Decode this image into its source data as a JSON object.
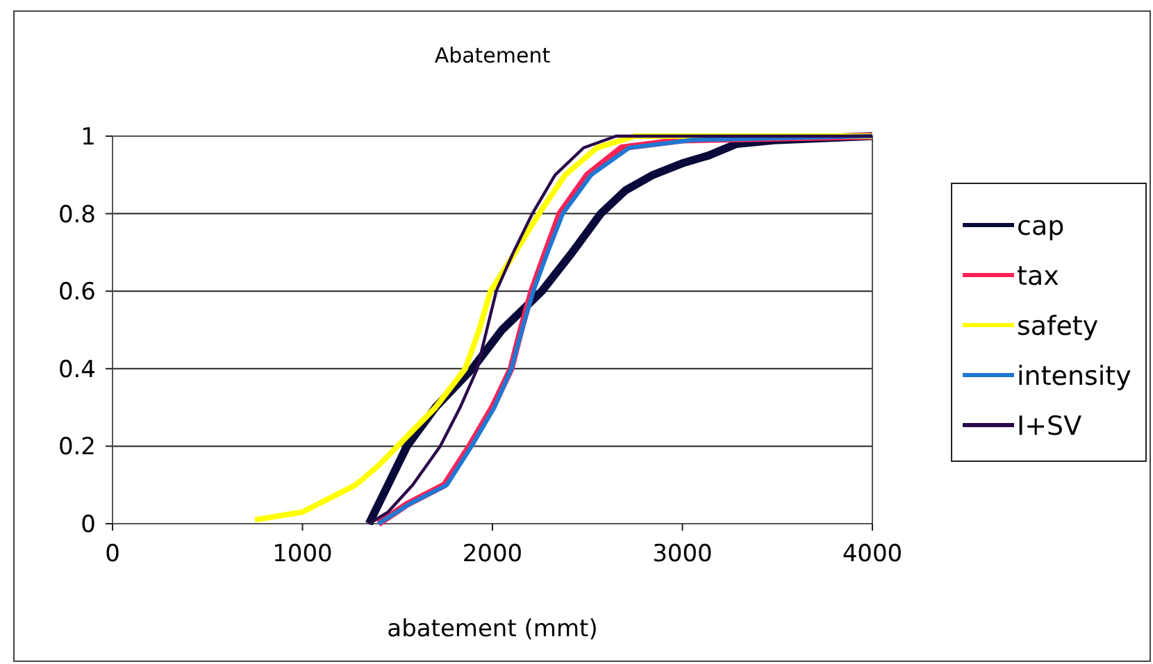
{
  "chart_data": {
    "type": "line",
    "title": "Abatement",
    "xlabel": "abatement (mmt)",
    "xlim": [
      0,
      4000
    ],
    "xticks": [
      0,
      1000,
      2000,
      3000,
      4000
    ],
    "ylim": [
      0,
      1
    ],
    "yticks": [
      0,
      0.2,
      0.4,
      0.6,
      0.8,
      1
    ],
    "grid": "y",
    "legend": "right",
    "marker": "none",
    "line_style": "solid",
    "series": [
      {
        "name": "cap",
        "color": "#0a0a3a",
        "x": [
          1350,
          1450,
          1550,
          1700,
          1894,
          2050,
          2260,
          2420,
          2570,
          2700,
          2845,
          3000,
          3138,
          3285,
          3500,
          4000
        ],
        "values": [
          0,
          0.1,
          0.2,
          0.3,
          0.4,
          0.5,
          0.6,
          0.7,
          0.8,
          0.86,
          0.9,
          0.93,
          0.95,
          0.98,
          0.99,
          1
        ]
      },
      {
        "name": "tax",
        "color": "#ff2255",
        "x": [
          1400,
          1550,
          1748,
          1880,
          2000,
          2098,
          2150,
          2207,
          2280,
          2355,
          2500,
          2680,
          3000,
          4000
        ],
        "values": [
          0,
          0.05,
          0.1,
          0.2,
          0.3,
          0.4,
          0.5,
          0.6,
          0.7,
          0.8,
          0.9,
          0.97,
          0.99,
          1
        ]
      },
      {
        "name": "safety",
        "color": "#ffff00",
        "x": [
          750,
          1000,
          1200,
          1280,
          1400,
          1500,
          1700,
          1857,
          1930,
          1990,
          2120,
          2245,
          2383,
          2550,
          2750,
          4000
        ],
        "values": [
          0.01,
          0.03,
          0.08,
          0.1,
          0.15,
          0.2,
          0.3,
          0.4,
          0.5,
          0.6,
          0.7,
          0.8,
          0.9,
          0.97,
          1,
          1
        ]
      },
      {
        "name": "intensity",
        "color": "#1f78d1",
        "x": [
          1400,
          1560,
          1760,
          1890,
          2010,
          2100,
          2155,
          2215,
          2290,
          2370,
          2520,
          2720,
          3050,
          4000
        ],
        "values": [
          0,
          0.05,
          0.1,
          0.2,
          0.3,
          0.4,
          0.5,
          0.6,
          0.7,
          0.8,
          0.9,
          0.97,
          0.99,
          1
        ]
      },
      {
        "name": "I+SV",
        "color": "#2a0a4a",
        "x": [
          1350,
          1450,
          1580,
          1725,
          1830,
          1920,
          1970,
          2020,
          2110,
          2210,
          2330,
          2480,
          2650,
          4000
        ],
        "values": [
          0,
          0.03,
          0.1,
          0.2,
          0.3,
          0.4,
          0.5,
          0.6,
          0.7,
          0.8,
          0.9,
          0.97,
          1,
          1
        ]
      }
    ]
  }
}
